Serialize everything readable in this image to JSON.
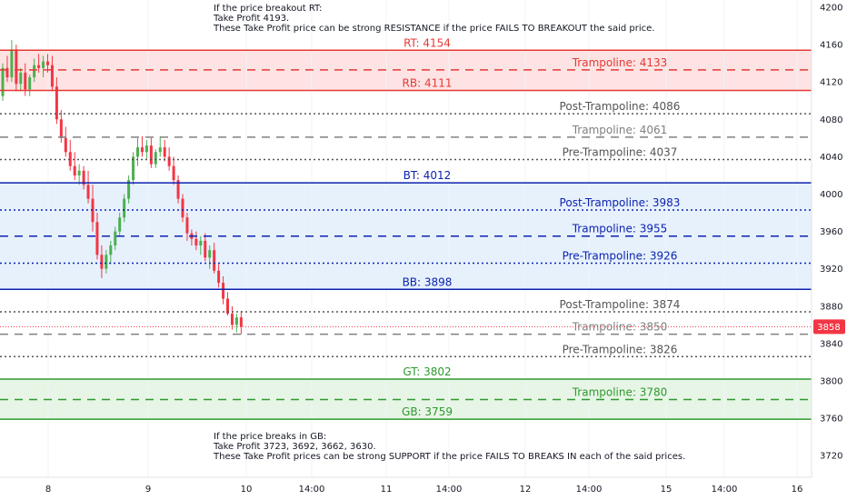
{
  "chart_data": {
    "type": "candlestick",
    "symbol_price": "3858",
    "y_ticks": [
      4200,
      4160,
      4120,
      4080,
      4040,
      4000,
      3960,
      3920,
      3880,
      3840,
      3800,
      3760,
      3720
    ],
    "x_ticks": [
      "8",
      "9",
      "10",
      "14:00",
      "11",
      "14:00",
      "12",
      "14:00",
      "15",
      "14:00",
      "16"
    ],
    "ylim": [
      3706,
      4210
    ],
    "levels": [
      {
        "label": "RT: 4154",
        "price": 4154,
        "style": "solid",
        "color": "#e53935",
        "label_pos": "center"
      },
      {
        "label": "Trampoline: 4133",
        "price": 4133,
        "style": "dashed",
        "color": "#e53935",
        "label_pos": "right"
      },
      {
        "label": "RB: 4111",
        "price": 4111,
        "style": "solid",
        "color": "#e53935",
        "label_pos": "center"
      },
      {
        "label": "Post-Trampoline: 4086",
        "price": 4086,
        "style": "dotted",
        "color": "#555555",
        "label_pos": "right"
      },
      {
        "label": "Trampoline: 4061",
        "price": 4061,
        "style": "dashed",
        "color": "#808080",
        "label_pos": "right"
      },
      {
        "label": "Pre-Trampoline: 4037",
        "price": 4037,
        "style": "dotted",
        "color": "#555555",
        "label_pos": "right"
      },
      {
        "label": "BT: 4012",
        "price": 4012,
        "style": "solid",
        "color": "#0d22b0",
        "label_pos": "center"
      },
      {
        "label": "Post-Trampoline: 3983",
        "price": 3983,
        "style": "dotted",
        "color": "#0d22b0",
        "label_pos": "right"
      },
      {
        "label": "Trampoline: 3955",
        "price": 3955,
        "style": "dashed",
        "color": "#0d22b0",
        "label_pos": "right"
      },
      {
        "label": "Pre-Trampoline: 3926",
        "price": 3926,
        "style": "dotted",
        "color": "#0d22b0",
        "label_pos": "right"
      },
      {
        "label": "BB: 3898",
        "price": 3898,
        "style": "solid",
        "color": "#0d22b0",
        "label_pos": "center"
      },
      {
        "label": "Post-Trampoline: 3874",
        "price": 3874,
        "style": "dotted",
        "color": "#555555",
        "label_pos": "right"
      },
      {
        "label": "Trampoline: 3850",
        "price": 3850,
        "style": "dashed",
        "color": "#808080",
        "label_pos": "right"
      },
      {
        "label": "Pre-Trampoline: 3826",
        "price": 3826,
        "style": "dotted",
        "color": "#555555",
        "label_pos": "right"
      },
      {
        "label": "GT: 3802",
        "price": 3802,
        "style": "solid",
        "color": "#2e9a2e",
        "label_pos": "center"
      },
      {
        "label": "Trampoline: 3780",
        "price": 3780,
        "style": "dashed",
        "color": "#2e9a2e",
        "label_pos": "right"
      },
      {
        "label": "GB: 3759",
        "price": 3759,
        "style": "solid",
        "color": "#2e9a2e",
        "label_pos": "center"
      }
    ],
    "zones": [
      {
        "from": 4111,
        "to": 4154,
        "color": "#fde3e3"
      },
      {
        "from": 3898,
        "to": 4012,
        "color": "#e6f1fc"
      },
      {
        "from": 3759,
        "to": 3802,
        "color": "#e7f5e6"
      }
    ],
    "candles": [
      [
        4105,
        4140,
        4100,
        4135
      ],
      [
        4135,
        4148,
        4120,
        4125
      ],
      [
        4125,
        4165,
        4120,
        4155
      ],
      [
        4155,
        4160,
        4110,
        4118
      ],
      [
        4118,
        4135,
        4110,
        4130
      ],
      [
        4130,
        4140,
        4105,
        4112
      ],
      [
        4112,
        4128,
        4105,
        4125
      ],
      [
        4125,
        4145,
        4120,
        4138
      ],
      [
        4138,
        4150,
        4130,
        4135
      ],
      [
        4135,
        4148,
        4125,
        4142
      ],
      [
        4142,
        4150,
        4130,
        4138
      ],
      [
        4138,
        4148,
        4110,
        4115
      ],
      [
        4115,
        4125,
        4075,
        4080
      ],
      [
        4080,
        4090,
        4055,
        4060
      ],
      [
        4060,
        4072,
        4040,
        4045
      ],
      [
        4045,
        4058,
        4025,
        4030
      ],
      [
        4030,
        4045,
        4015,
        4020
      ],
      [
        4020,
        4032,
        4010,
        4025
      ],
      [
        4025,
        4030,
        4005,
        4010
      ],
      [
        4010,
        4025,
        3990,
        3995
      ],
      [
        3995,
        4010,
        3960,
        3970
      ],
      [
        3970,
        3980,
        3930,
        3935
      ],
      [
        3935,
        3945,
        3910,
        3920
      ],
      [
        3920,
        3940,
        3915,
        3935
      ],
      [
        3935,
        3950,
        3925,
        3945
      ],
      [
        3945,
        3965,
        3940,
        3960
      ],
      [
        3960,
        3980,
        3955,
        3975
      ],
      [
        3975,
        4000,
        3970,
        3995
      ],
      [
        3995,
        4020,
        3990,
        4015
      ],
      [
        4015,
        4045,
        4010,
        4040
      ],
      [
        4040,
        4060,
        4030,
        4050
      ],
      [
        4050,
        4062,
        4040,
        4045
      ],
      [
        4045,
        4058,
        4038,
        4052
      ],
      [
        4052,
        4060,
        4028,
        4032
      ],
      [
        4032,
        4048,
        4028,
        4045
      ],
      [
        4045,
        4062,
        4040,
        4050
      ],
      [
        4050,
        4058,
        4035,
        4040
      ],
      [
        4040,
        4050,
        4025,
        4030
      ],
      [
        4030,
        4040,
        4010,
        4015
      ],
      [
        4015,
        4020,
        3990,
        3995
      ],
      [
        3995,
        4000,
        3970,
        3975
      ],
      [
        3975,
        3980,
        3950,
        3958
      ],
      [
        3958,
        3962,
        3945,
        3952
      ],
      [
        3952,
        3960,
        3940,
        3945
      ],
      [
        3945,
        3955,
        3935,
        3950
      ],
      [
        3950,
        3958,
        3928,
        3932
      ],
      [
        3932,
        3945,
        3920,
        3940
      ],
      [
        3940,
        3948,
        3915,
        3918
      ],
      [
        3918,
        3925,
        3900,
        3905
      ],
      [
        3905,
        3912,
        3882,
        3888
      ],
      [
        3888,
        3895,
        3870,
        3872
      ],
      [
        3872,
        3880,
        3855,
        3860
      ],
      [
        3860,
        3872,
        3852,
        3868
      ],
      [
        3868,
        3875,
        3850,
        3858
      ]
    ]
  },
  "notes": {
    "top": "If the price breakout RT:\nTake Profit 4193.\nThese Take Profit price can be strong RESISTANCE if the price FAILS TO BREAKOUT the said price.",
    "bottom": "If the price breaks in GB:\nTake Profit 3723, 3692, 3662, 3630.\nThese Take Profit prices can be strong SUPPORT if the price FAILS TO BREAKS IN each of the said prices."
  },
  "colors": {
    "up": "#4caf50",
    "down": "#f23645",
    "price_tag": "#f23645"
  }
}
